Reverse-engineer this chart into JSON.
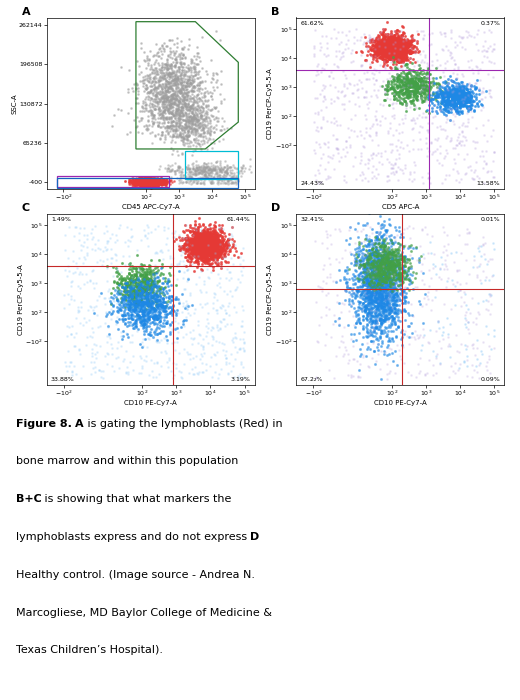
{
  "fig_width": 5.2,
  "fig_height": 7.0,
  "dpi": 100,
  "background_color": "#ffffff",
  "panel_A": {
    "label": "A",
    "xlabel": "CD45 APC-Cy7-A",
    "ylabel": "SSC-A",
    "yticks": [
      -400,
      65236,
      130872,
      196508,
      262144
    ],
    "gate_color_green": "#2e7d32",
    "gate_color_cyan": "#00bcd4",
    "gate_color_purple": "#9c27b0",
    "gate_color_blue": "#1565c0"
  },
  "panel_B": {
    "label": "B",
    "xlabel": "CD5 APC-A",
    "ylabel": "CD19 PerCP-Cy5-5-A",
    "pct_UL": "61.62%",
    "pct_UR": "0.37%",
    "pct_LL": "24.43%",
    "pct_LR": "13.58%",
    "line_color": "#9c27b0"
  },
  "panel_C": {
    "label": "C",
    "xlabel": "CD10 PE-Cy7-A",
    "ylabel": "CD19 PerCP-Cy5-5-A",
    "pct_UL": "1.49%",
    "pct_UR": "61.44%",
    "pct_LL": "33.88%",
    "pct_LR": "3.19%",
    "line_color": "#c62828"
  },
  "panel_D": {
    "label": "D",
    "xlabel": "CD10 PE-Cy7-A",
    "ylabel": "CD19 PerCP-Cy5-5-A",
    "pct_UL": "32.41%",
    "pct_UR": "0.01%",
    "pct_LL": "67.2₂%",
    "pct_LR": "0.09%",
    "line_color": "#c62828"
  },
  "colors": {
    "red": "#e53935",
    "gray": "#9e9e9e",
    "green": "#43a047",
    "blue": "#1e88e5",
    "light_blue": "#90caf9",
    "light_purple": "#b39ddb"
  },
  "caption_lines": [
    [
      [
        "Figure 8.",
        true
      ],
      [
        " ",
        false
      ],
      [
        "A",
        true
      ],
      [
        " is gating the lymphoblasts (Red) in",
        false
      ]
    ],
    [
      [
        "bone marrow and within this population",
        false
      ]
    ],
    [
      [
        "B+C",
        true
      ],
      [
        " is showing that what markers the",
        false
      ]
    ],
    [
      [
        "lymphoblasts express and do not express ",
        false
      ],
      [
        "D",
        true
      ]
    ],
    [
      [
        "Healthy control. (Image source - Andrea N.",
        false
      ]
    ],
    [
      [
        "Marcogliese, MD Baylor College of Medicine &",
        false
      ]
    ],
    [
      [
        "Texas Children’s Hospital).",
        false
      ]
    ]
  ]
}
